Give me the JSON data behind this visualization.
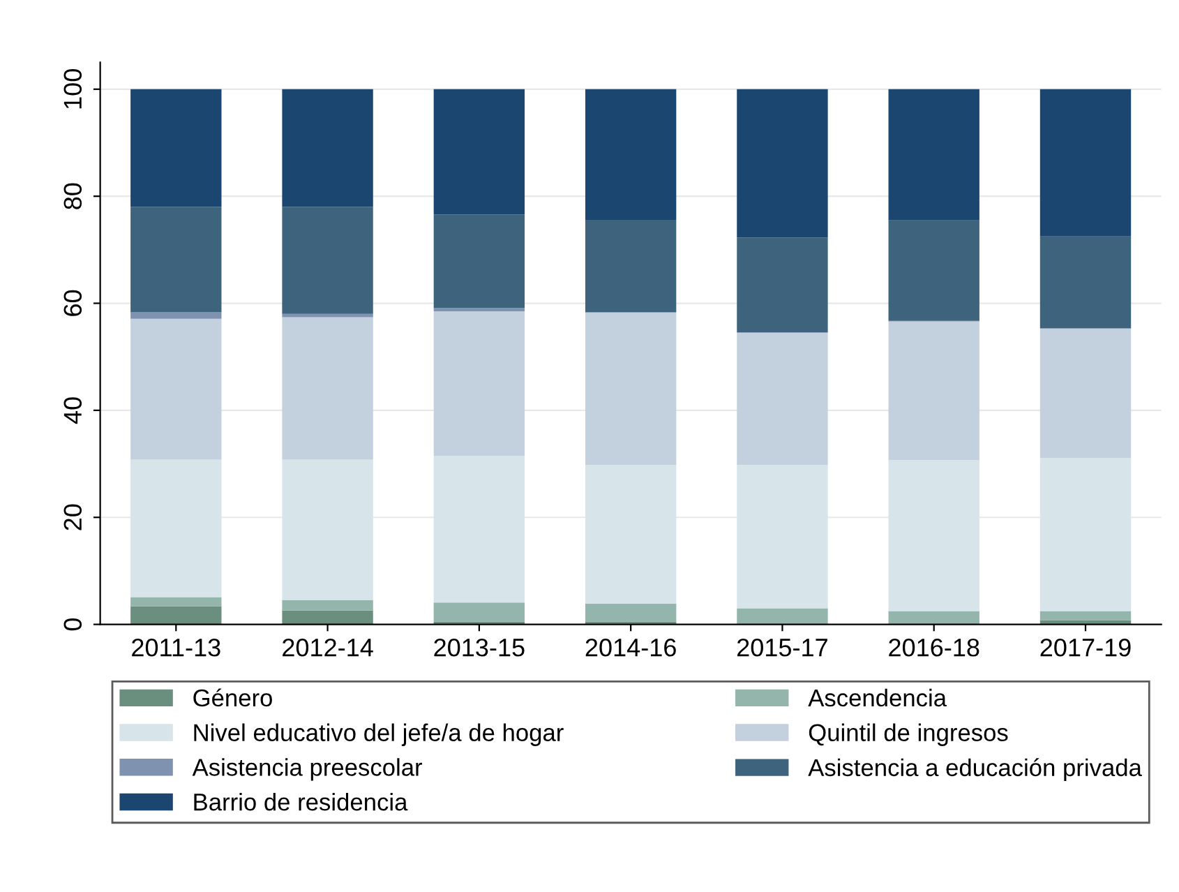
{
  "chart_data": {
    "type": "bar",
    "stacked": true,
    "categories": [
      "2011-13",
      "2012-14",
      "2013-15",
      "2014-16",
      "2015-17",
      "2016-18",
      "2017-19"
    ],
    "series": [
      {
        "name": "Género",
        "color": "#6a8f7e",
        "values": [
          3.4,
          2.6,
          0.5,
          0.5,
          null,
          null,
          0.8
        ]
      },
      {
        "name": "Ascendencia",
        "color": "#93b5ab",
        "values": [
          1.7,
          1.9,
          3.6,
          3.4,
          3.0,
          2.5,
          1.7
        ]
      },
      {
        "name": "Nivel educativo del jefe/a de hogar",
        "color": "#d7e4ea",
        "values": [
          25.7,
          26.3,
          27.4,
          25.9,
          26.8,
          28.2,
          28.6
        ]
      },
      {
        "name": "Quintil de ingresos",
        "color": "#c3d0dd",
        "values": [
          26.3,
          26.6,
          27.0,
          28.5,
          24.7,
          25.9,
          24.2
        ]
      },
      {
        "name": "Asistencia preescolar",
        "color": "#7f93b0",
        "values": [
          1.2,
          0.6,
          0.6,
          null,
          0.1,
          0.1,
          null
        ]
      },
      {
        "name": "Asistencia a educación privada",
        "color": "#3e647d",
        "values": [
          19.7,
          20.0,
          17.5,
          17.3,
          17.7,
          18.8,
          17.2
        ]
      },
      {
        "name": "Barrio de residencia",
        "color": "#1b4670",
        "values": [
          22.0,
          22.0,
          23.4,
          24.4,
          27.7,
          24.5,
          27.5
        ]
      }
    ],
    "ylim": [
      0,
      105
    ],
    "yticks": [
      0,
      20,
      40,
      60,
      80,
      100
    ],
    "grid": "y",
    "legend": "bottom"
  }
}
